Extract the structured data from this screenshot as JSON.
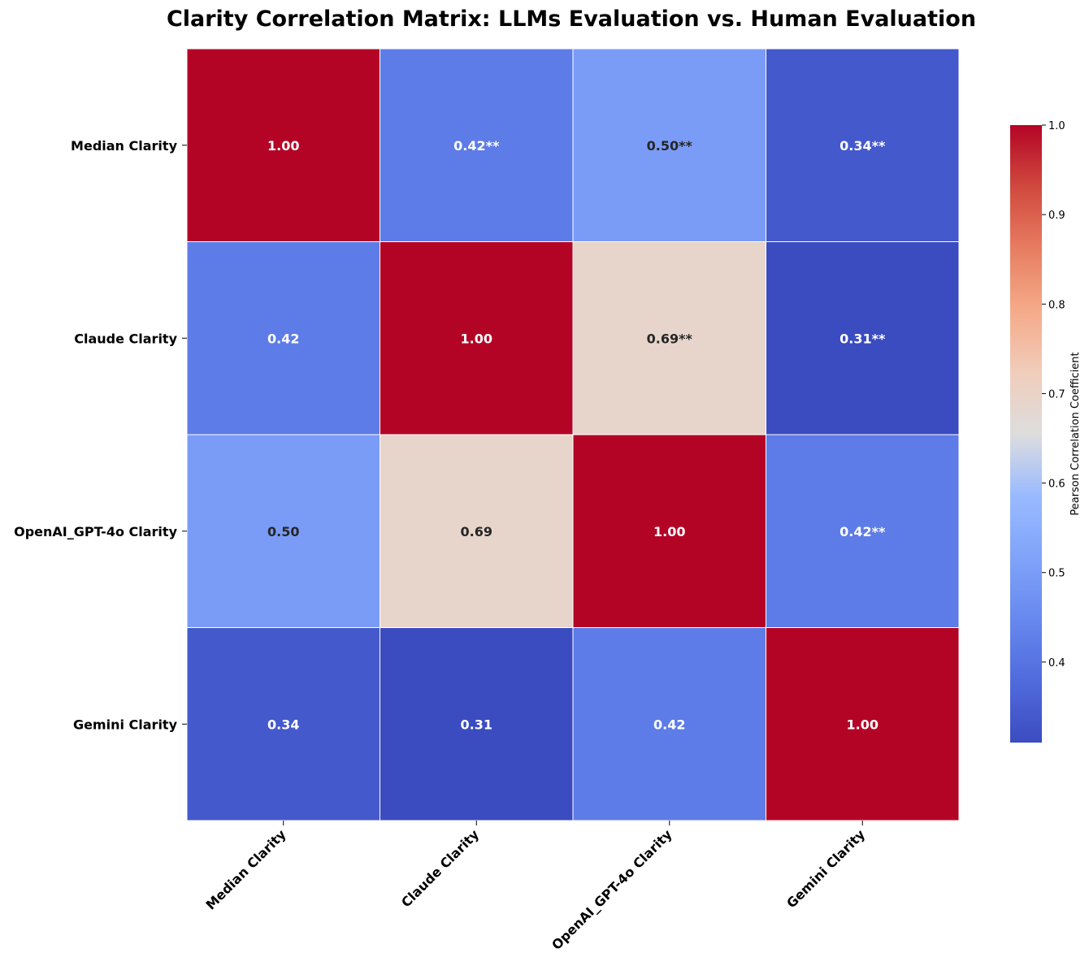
{
  "chart_data": {
    "type": "heatmap",
    "title": "Clarity Correlation Matrix: LLMs Evaluation vs. Human Evaluation",
    "rows": [
      "Median Clarity",
      "Claude Clarity",
      "OpenAI_GPT-4o Clarity",
      "Gemini Clarity"
    ],
    "columns": [
      "Median Clarity",
      "Claude Clarity",
      "OpenAI_GPT-4o Clarity",
      "Gemini Clarity"
    ],
    "values": [
      [
        1.0,
        0.42,
        0.5,
        0.34
      ],
      [
        0.42,
        1.0,
        0.69,
        0.31
      ],
      [
        0.5,
        0.69,
        1.0,
        0.42
      ],
      [
        0.34,
        0.31,
        0.42,
        1.0
      ]
    ],
    "annotations": [
      [
        "1.00",
        "0.42**",
        "0.50**",
        "0.34**"
      ],
      [
        "0.42",
        "1.00",
        "0.69**",
        "0.31**"
      ],
      [
        "0.50",
        "0.69",
        "1.00",
        "0.42**"
      ],
      [
        "0.34",
        "0.31",
        "0.42",
        "1.00"
      ]
    ],
    "colormap": "coolwarm",
    "vmin": 0.31,
    "vmax": 1.0,
    "colorbar": {
      "label": "Pearson Correlation Coefficient",
      "ticks": [
        0.4,
        0.5,
        0.6,
        0.7,
        0.8,
        0.9,
        1.0
      ],
      "tick_labels": [
        "0.4",
        "0.5",
        "0.6",
        "0.7",
        "0.8",
        "0.9",
        "1.0"
      ],
      "placement": "right"
    },
    "grid": false
  }
}
